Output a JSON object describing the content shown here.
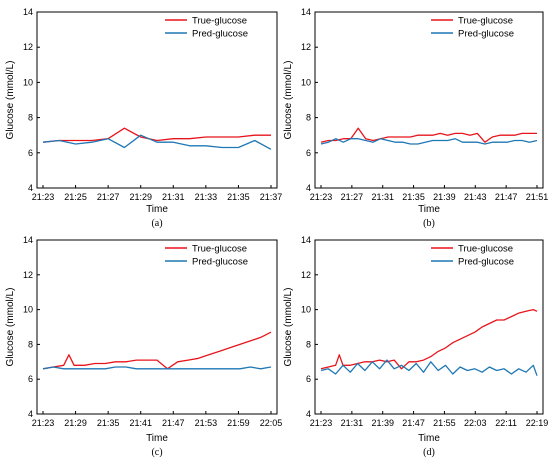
{
  "colors": {
    "true_line": "#e8141c",
    "pred_line": "#1f77b4"
  },
  "chart_data": [
    {
      "panel": "(a)",
      "type": "line",
      "xlabel": "Time",
      "ylabel": "Glucose (mmol/L)",
      "ylim": [
        4,
        14
      ],
      "yticks": [
        "4",
        "6",
        "8",
        "10",
        "12",
        "14"
      ],
      "xticks": [
        "21:23",
        "21:25",
        "21:27",
        "21:29",
        "21:31",
        "21:33",
        "21:35",
        "21:37"
      ],
      "x_range": [
        0,
        14
      ],
      "series": [
        {
          "name": "True-glucose",
          "x": [
            0,
            1,
            2,
            3,
            4,
            5,
            6,
            7,
            8,
            9,
            10,
            11,
            12,
            13,
            14
          ],
          "y": [
            6.6,
            6.7,
            6.7,
            6.7,
            6.8,
            7.4,
            6.9,
            6.7,
            6.8,
            6.8,
            6.9,
            6.9,
            6.9,
            7.0,
            7.0
          ]
        },
        {
          "name": "Pred-glucose",
          "x": [
            0,
            1,
            2,
            3,
            4,
            5,
            6,
            7,
            8,
            9,
            10,
            11,
            12,
            13,
            14
          ],
          "y": [
            6.6,
            6.7,
            6.5,
            6.6,
            6.8,
            6.3,
            7.0,
            6.6,
            6.6,
            6.4,
            6.4,
            6.3,
            6.3,
            6.7,
            6.2
          ]
        }
      ]
    },
    {
      "panel": "(b)",
      "type": "line",
      "xlabel": "Time",
      "ylabel": "Glucose (mmol/L)",
      "ylim": [
        4,
        14
      ],
      "yticks": [
        "4",
        "6",
        "8",
        "10",
        "12",
        "14"
      ],
      "xticks": [
        "21:23",
        "21:27",
        "21:31",
        "21:35",
        "21:39",
        "21:43",
        "21:47",
        "21:51"
      ],
      "x_range": [
        0,
        29
      ],
      "series": [
        {
          "name": "True-glucose",
          "x": [
            0,
            1,
            2,
            3,
            4,
            5,
            6,
            7,
            8,
            9,
            10,
            11,
            12,
            13,
            14,
            15,
            16,
            17,
            18,
            19,
            20,
            21,
            22,
            23,
            24,
            25,
            26,
            27,
            28,
            29
          ],
          "y": [
            6.6,
            6.7,
            6.7,
            6.8,
            6.8,
            7.4,
            6.8,
            6.7,
            6.8,
            6.9,
            6.9,
            6.9,
            6.9,
            7.0,
            7.0,
            7.0,
            7.1,
            7.0,
            7.1,
            7.1,
            7.0,
            7.1,
            6.6,
            6.9,
            7.0,
            7.0,
            7.0,
            7.1,
            7.1,
            7.1
          ]
        },
        {
          "name": "Pred-glucose",
          "x": [
            0,
            1,
            2,
            3,
            4,
            5,
            6,
            7,
            8,
            9,
            10,
            11,
            12,
            13,
            14,
            15,
            16,
            17,
            18,
            19,
            20,
            21,
            22,
            23,
            24,
            25,
            26,
            27,
            28,
            29
          ],
          "y": [
            6.5,
            6.6,
            6.8,
            6.6,
            6.8,
            6.8,
            6.7,
            6.6,
            6.8,
            6.7,
            6.6,
            6.6,
            6.5,
            6.5,
            6.6,
            6.7,
            6.7,
            6.7,
            6.8,
            6.6,
            6.6,
            6.6,
            6.5,
            6.6,
            6.6,
            6.6,
            6.7,
            6.7,
            6.6,
            6.7
          ]
        }
      ]
    },
    {
      "panel": "(c)",
      "type": "line",
      "xlabel": "Time",
      "ylabel": "Glucose (mmol/L)",
      "ylim": [
        4,
        14
      ],
      "yticks": [
        "4",
        "6",
        "8",
        "10",
        "12",
        "14"
      ],
      "xticks": [
        "21:23",
        "21:29",
        "21:35",
        "21:41",
        "21:47",
        "21:53",
        "21:59",
        "22:05"
      ],
      "x_range": [
        0,
        44
      ],
      "series": [
        {
          "name": "True-glucose",
          "x": [
            0,
            2,
            4,
            5,
            6,
            8,
            10,
            12,
            14,
            16,
            18,
            20,
            22,
            24,
            26,
            28,
            30,
            32,
            34,
            36,
            38,
            40,
            42,
            44
          ],
          "y": [
            6.6,
            6.7,
            6.8,
            7.4,
            6.8,
            6.8,
            6.9,
            6.9,
            7.0,
            7.0,
            7.1,
            7.1,
            7.1,
            6.6,
            7.0,
            7.1,
            7.2,
            7.4,
            7.6,
            7.8,
            8.0,
            8.2,
            8.4,
            8.7
          ]
        },
        {
          "name": "Pred-glucose",
          "x": [
            0,
            2,
            4,
            6,
            8,
            10,
            12,
            14,
            16,
            18,
            20,
            22,
            24,
            26,
            28,
            30,
            32,
            34,
            36,
            38,
            40,
            42,
            44
          ],
          "y": [
            6.6,
            6.7,
            6.6,
            6.6,
            6.6,
            6.6,
            6.6,
            6.7,
            6.7,
            6.6,
            6.6,
            6.6,
            6.6,
            6.6,
            6.6,
            6.6,
            6.6,
            6.6,
            6.6,
            6.6,
            6.7,
            6.6,
            6.7
          ]
        }
      ]
    },
    {
      "panel": "(d)",
      "type": "line",
      "xlabel": "Time",
      "ylabel": "Glucose (mmol/L)",
      "ylim": [
        4,
        14
      ],
      "yticks": [
        "4",
        "6",
        "8",
        "10",
        "12",
        "14"
      ],
      "xticks": [
        "21:23",
        "21:31",
        "21:39",
        "21:47",
        "21:55",
        "22:03",
        "22:11",
        "22:19"
      ],
      "x_range": [
        0,
        59
      ],
      "series": [
        {
          "name": "True-glucose",
          "x": [
            0,
            2,
            4,
            5,
            6,
            8,
            10,
            12,
            14,
            16,
            18,
            20,
            22,
            24,
            26,
            28,
            30,
            32,
            34,
            36,
            38,
            40,
            42,
            44,
            46,
            48,
            50,
            52,
            54,
            56,
            58,
            59
          ],
          "y": [
            6.6,
            6.7,
            6.8,
            7.4,
            6.8,
            6.8,
            6.9,
            7.0,
            7.0,
            7.1,
            7.0,
            7.1,
            6.6,
            7.0,
            7.0,
            7.1,
            7.3,
            7.6,
            7.8,
            8.1,
            8.3,
            8.5,
            8.7,
            9.0,
            9.2,
            9.4,
            9.4,
            9.6,
            9.8,
            9.9,
            10.0,
            9.9
          ]
        },
        {
          "name": "Pred-glucose",
          "x": [
            0,
            2,
            4,
            6,
            8,
            10,
            12,
            14,
            16,
            18,
            20,
            22,
            24,
            26,
            28,
            30,
            32,
            34,
            36,
            38,
            40,
            42,
            44,
            46,
            48,
            50,
            52,
            54,
            56,
            58,
            59
          ],
          "y": [
            6.5,
            6.6,
            6.3,
            6.8,
            6.4,
            6.9,
            6.5,
            7.0,
            6.6,
            7.1,
            6.6,
            6.8,
            6.5,
            6.9,
            6.4,
            7.0,
            6.5,
            6.8,
            6.3,
            6.7,
            6.5,
            6.6,
            6.4,
            6.7,
            6.5,
            6.6,
            6.3,
            6.6,
            6.4,
            6.8,
            6.2
          ]
        }
      ]
    }
  ]
}
